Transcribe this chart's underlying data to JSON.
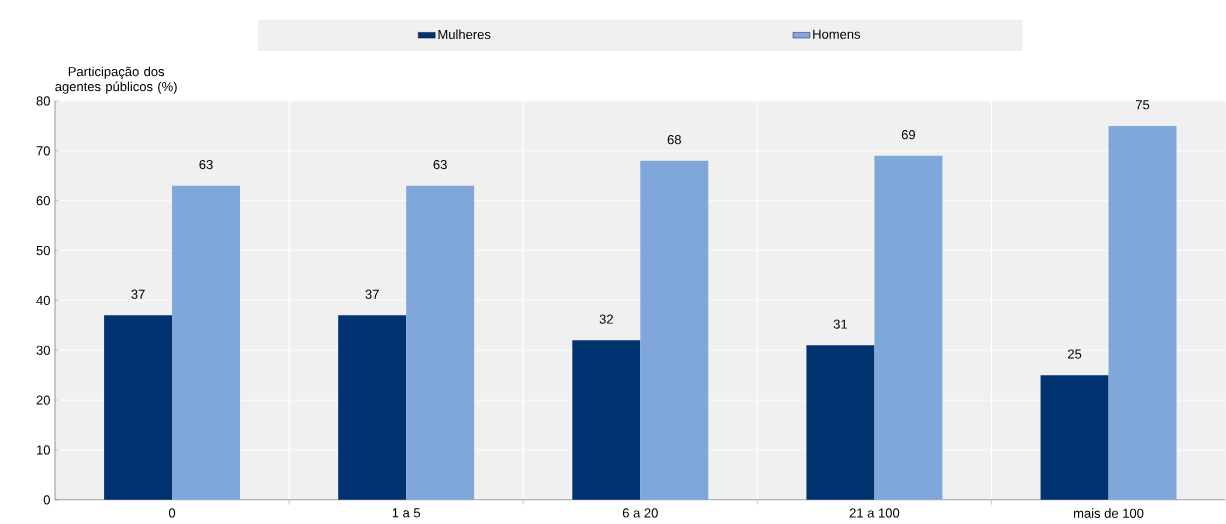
{
  "chart_data": {
    "type": "bar",
    "ylabel": "Participação dos agentes públicos (%)",
    "categories": [
      "0",
      "1 a 5",
      "6 a 20",
      "21 a 100",
      "mais de  100"
    ],
    "series": [
      {
        "name": "Mulheres",
        "color": "#003270",
        "values": [
          37,
          37,
          32,
          31,
          25
        ]
      },
      {
        "name": "Homens",
        "color": "#7fa7d9",
        "values": [
          63,
          63,
          68,
          69,
          75
        ]
      }
    ],
    "ylim": [
      0,
      80
    ],
    "yticks": [
      0,
      10,
      20,
      30,
      40,
      50,
      60,
      70,
      80
    ],
    "grid": true,
    "legend": "top",
    "data_labels": true
  }
}
